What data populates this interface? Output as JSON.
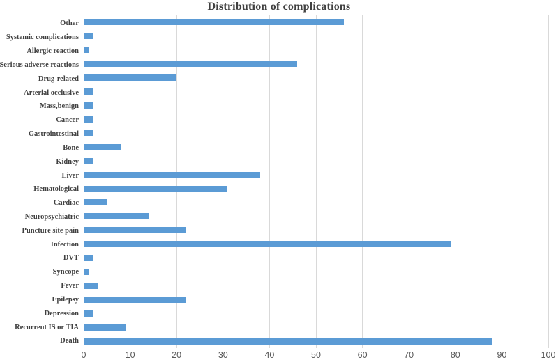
{
  "chart_data": {
    "type": "bar",
    "orientation": "horizontal",
    "title": "Distribution of complications",
    "categories": [
      "Other",
      "Systemic complications",
      "Allergic reaction",
      "Serious adverse reactions",
      "Drug-related",
      "Arterial occlusive",
      "Mass,benign",
      "Cancer",
      "Gastrointestinal",
      "Bone",
      "Kidney",
      "Liver",
      "Hematological",
      "Cardiac",
      "Neuropsychiatric",
      "Puncture site pain",
      "Infection",
      "DVT",
      "Syncope",
      "Fever",
      "Epilepsy",
      "Depression",
      "Recurrent IS or TIA",
      "Death"
    ],
    "values": [
      56,
      2,
      1,
      46,
      20,
      2,
      2,
      2,
      2,
      8,
      2,
      38,
      31,
      5,
      14,
      22,
      79,
      2,
      1,
      3,
      22,
      2,
      9,
      88
    ],
    "xlabel": "",
    "ylabel": "",
    "xlim": [
      0,
      100
    ],
    "xticks": [
      0,
      10,
      20,
      30,
      40,
      50,
      60,
      70,
      80,
      90,
      100
    ],
    "grid": true,
    "legend": false,
    "bar_color": "#5B9BD5",
    "gridline_color": "#D9D9D9",
    "title_color": "#404040",
    "category_label_color": "#404040",
    "tick_label_color": "#595959"
  }
}
